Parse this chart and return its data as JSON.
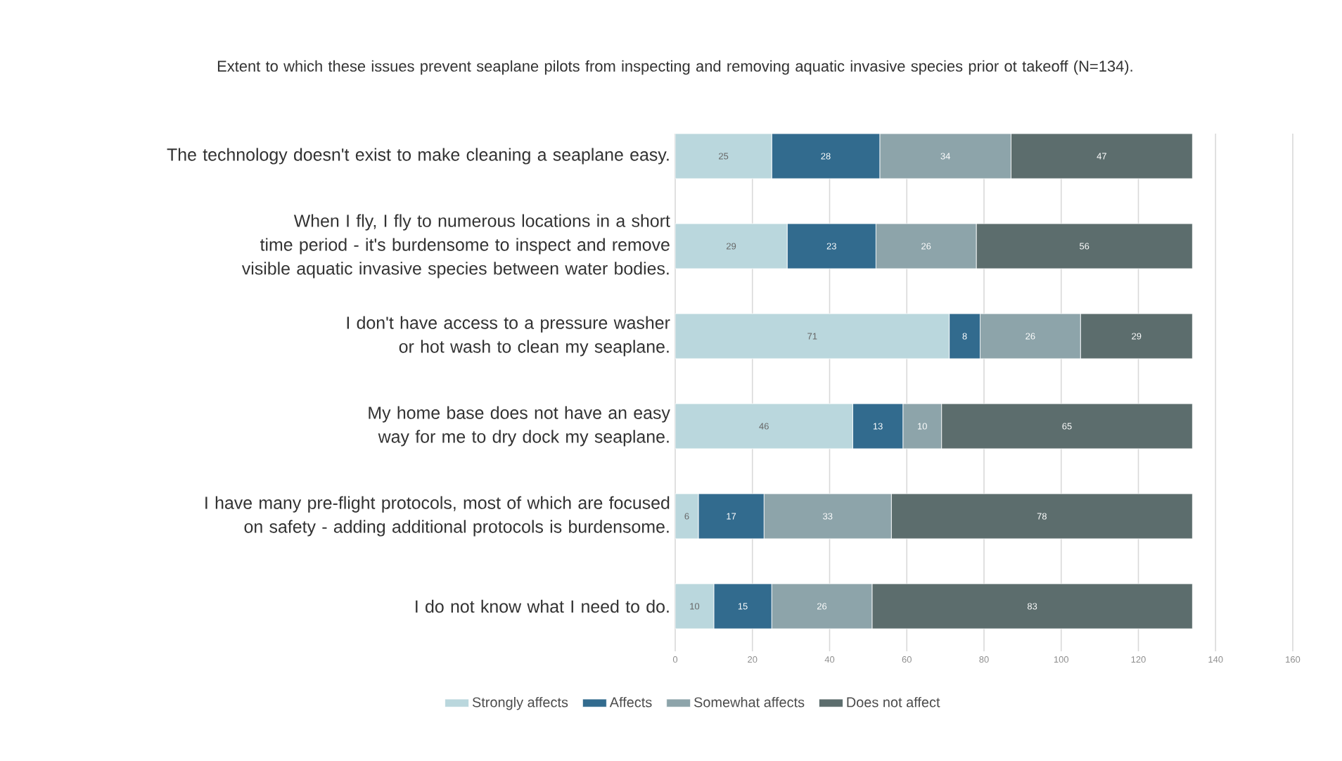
{
  "chart_data": {
    "type": "bar",
    "orientation": "horizontal",
    "stacked": true,
    "title": "Extent to which these issues prevent seaplane pilots from inspecting and removing aquatic invasive species prior ot takeoff (N=134).",
    "categories": [
      "The technology doesn't exist to make cleaning a seaplane easy.",
      "When I fly, I fly to numerous locations in a short time period - it's burdensome to inspect and remove visible aquatic invasive species between water bodies.",
      "I don't have access to a pressure washer or hot wash to clean my seaplane.",
      "My  home base does not have an easy way for me to dry dock my seaplane.",
      "I have many pre-flight protocols, most of which are focused on safety - adding additional protocols is burdensome.",
      "I do not know what I need to do."
    ],
    "series": [
      {
        "name": "Strongly affects",
        "color": "#bad7dd",
        "values": [
          25,
          29,
          71,
          46,
          6,
          10
        ]
      },
      {
        "name": "Affects",
        "color": "#326b8e",
        "values": [
          28,
          23,
          8,
          13,
          17,
          15
        ]
      },
      {
        "name": "Somewhat affects",
        "color": "#8da4aa",
        "values": [
          34,
          26,
          26,
          10,
          33,
          26
        ]
      },
      {
        "name": "Does not affect",
        "color": "#5c6d6d",
        "values": [
          47,
          56,
          29,
          65,
          78,
          83
        ]
      }
    ],
    "xlim": [
      0,
      160
    ],
    "xticks": [
      0,
      20,
      40,
      60,
      80,
      100,
      120,
      140,
      160
    ],
    "grid": "x",
    "legend": "bottom",
    "data_labels": true
  }
}
